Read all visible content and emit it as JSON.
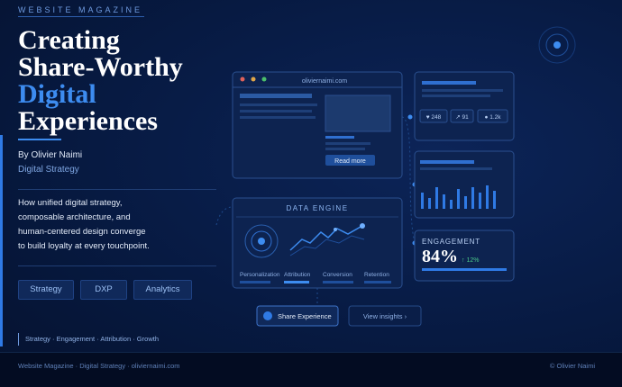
{
  "kicker": "WEBSITE MAGAZINE",
  "title": [
    "Creating",
    "Share-Worthy",
    "Digital",
    "Experiences"
  ],
  "author": "By Olivier Naimi",
  "role": "Digital Strategy",
  "description": [
    "How unified digital strategy,",
    "composable architecture, and",
    "human-centered design converge",
    "to build loyalty at every touchpoint."
  ],
  "tags": [
    "Strategy",
    "DXP",
    "Analytics"
  ],
  "topics": "Strategy · Engagement · Attribution · Growth",
  "footer": {
    "left": "Website Magazine · Digital Strategy · oliviernaimi.com",
    "right": "© Olivier Naimi"
  },
  "browser": {
    "url": "oliviernaimi.com",
    "button": "Read more"
  },
  "stats": [
    "♥ 248",
    "↗ 91",
    "● 1.2k"
  ],
  "data_engine": {
    "title": "DATA ENGINE",
    "labels": [
      "Personalization",
      "Attribution",
      "Conversion",
      "Retention"
    ]
  },
  "engagement": {
    "title": "ENGAGEMENT",
    "value": "84%",
    "change": "↑ 12%"
  },
  "actions": [
    "Share Experience",
    "View insights ›"
  ]
}
